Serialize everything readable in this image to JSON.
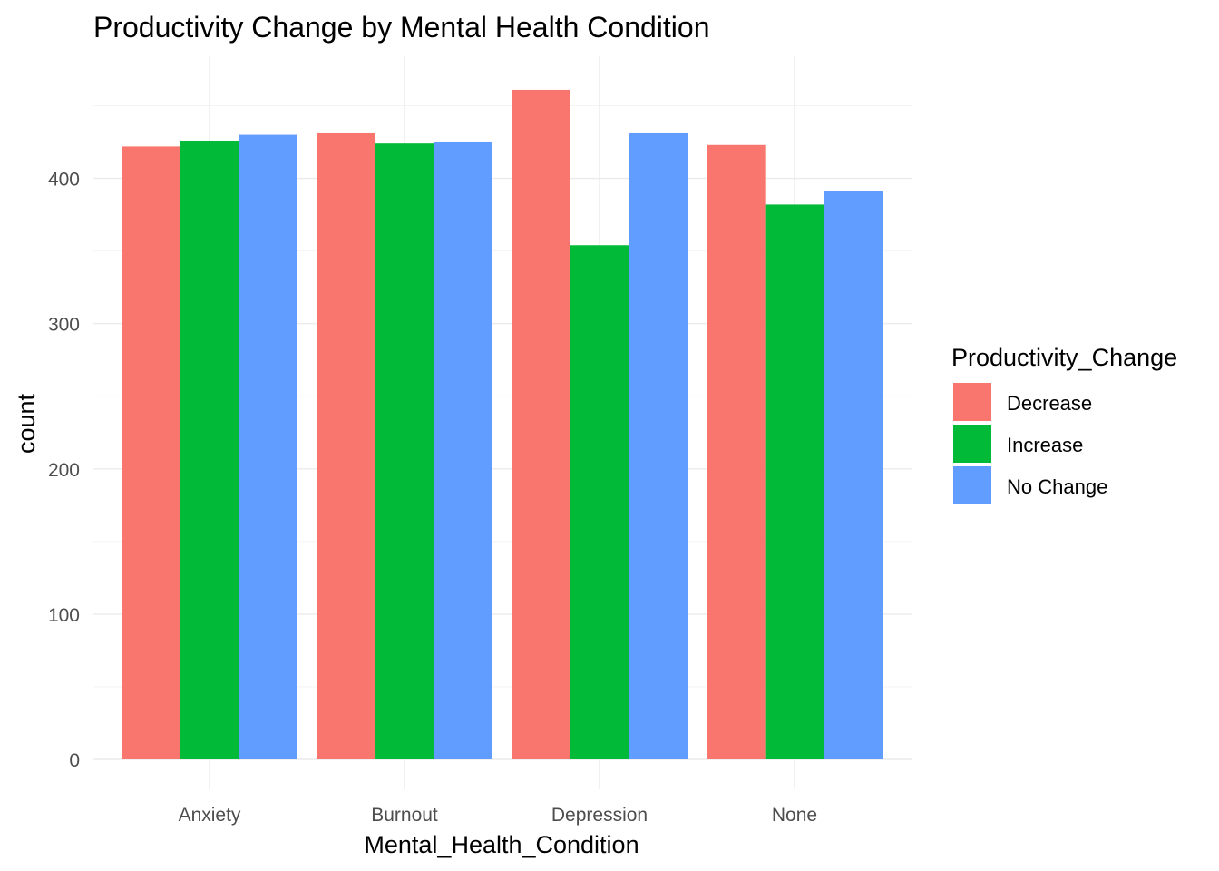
{
  "chart_data": {
    "type": "bar",
    "title": "Productivity Change by Mental Health Condition",
    "xlabel": "Mental_Health_Condition",
    "ylabel": "count",
    "categories": [
      "Anxiety",
      "Burnout",
      "Depression",
      "None"
    ],
    "series": [
      {
        "name": "Decrease",
        "color": "#F8766D",
        "values": [
          422,
          431,
          461,
          423
        ]
      },
      {
        "name": "Increase",
        "color": "#00BA38",
        "values": [
          426,
          424,
          354,
          382
        ]
      },
      {
        "name": "No Change",
        "color": "#619CFF",
        "values": [
          430,
          425,
          431,
          391
        ]
      }
    ],
    "y_ticks": [
      0,
      100,
      200,
      300,
      400
    ],
    "ylim": [
      0,
      485
    ],
    "grid": true,
    "legend": {
      "title": "Productivity_Change",
      "position": "right"
    }
  }
}
